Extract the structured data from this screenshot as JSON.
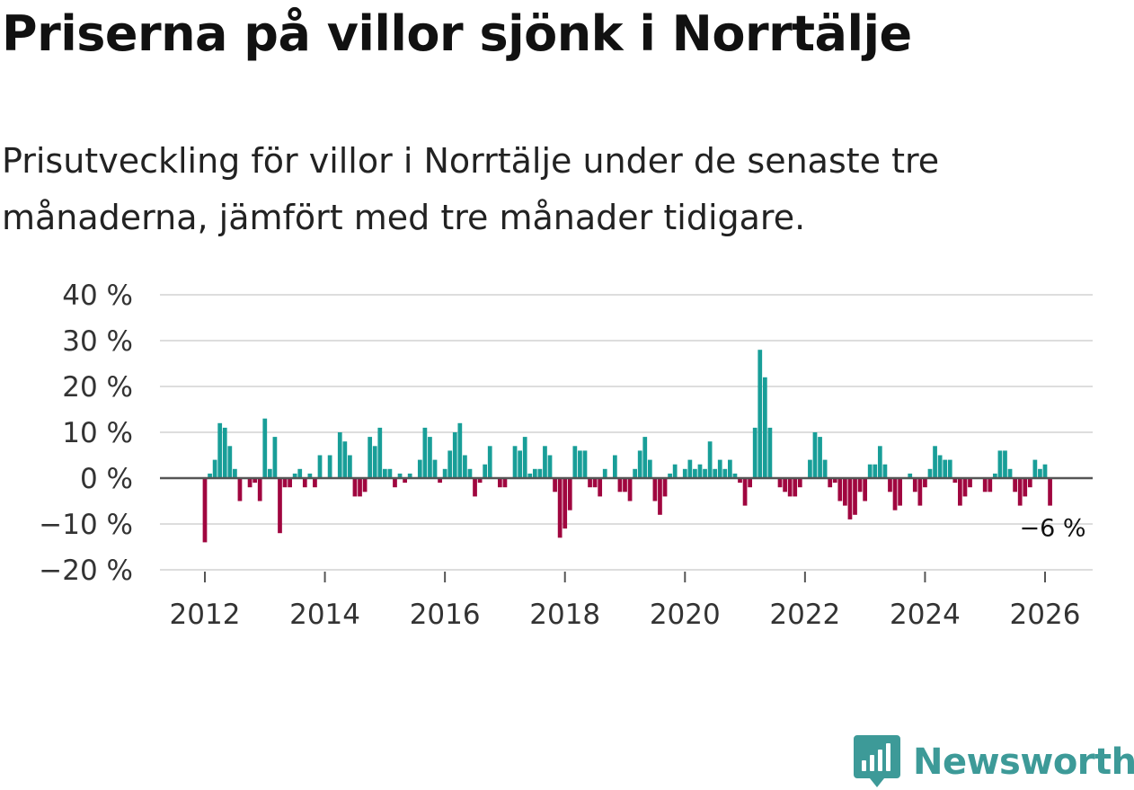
{
  "header": {
    "title": "Priserna på villor sjönk i Norrtälje",
    "subtitle": "Prisutveckling för villor i Norrtälje under de senaste tre månaderna, jämfört med tre månader tidigare."
  },
  "brand": {
    "name": "Newsworthy"
  },
  "colors": {
    "positive": "#189e98",
    "negative": "#a0063f",
    "grid": "#dddddd",
    "zero_line": "#555555",
    "text": "#333333"
  },
  "chart_data": {
    "type": "bar",
    "title": "Priserna på villor sjönk i Norrtälje",
    "xlabel": "",
    "ylabel": "",
    "ylim": [
      -20,
      40
    ],
    "y_ticks": [
      40,
      30,
      20,
      10,
      0,
      -10,
      -20
    ],
    "y_tick_labels": [
      "40 %",
      "30 %",
      "20 %",
      "10 %",
      "0 %",
      "−10 %",
      "−20 %"
    ],
    "x_ticks": [
      2012,
      2014,
      2016,
      2018,
      2020,
      2022,
      2024,
      2026
    ],
    "x_tick_labels": [
      "2012",
      "2014",
      "2016",
      "2018",
      "2020",
      "2022",
      "2024",
      "2026"
    ],
    "x_start": 2012.0,
    "step_months": 1,
    "grid": true,
    "last_value_label": "−6 %",
    "values": [
      -14,
      1,
      4,
      12,
      11,
      7,
      2,
      -5,
      0,
      -2,
      -1,
      -5,
      13,
      2,
      9,
      -12,
      -2,
      -2,
      1,
      2,
      -2,
      1,
      -2,
      5,
      0,
      5,
      0,
      10,
      8,
      5,
      -4,
      -4,
      -3,
      9,
      7,
      11,
      2,
      2,
      -2,
      1,
      -1,
      1,
      0,
      4,
      11,
      9,
      4,
      -1,
      2,
      6,
      10,
      12,
      5,
      2,
      -4,
      -1,
      3,
      7,
      0,
      -2,
      -2,
      0,
      7,
      6,
      9,
      1,
      2,
      2,
      7,
      5,
      -3,
      -13,
      -11,
      -7,
      7,
      6,
      6,
      -2,
      -2,
      -4,
      2,
      0,
      5,
      -3,
      -3,
      -5,
      2,
      6,
      9,
      4,
      -5,
      -8,
      -4,
      1,
      3,
      0,
      2,
      4,
      2,
      3,
      2,
      8,
      2,
      4,
      2,
      4,
      1,
      -1,
      -6,
      -2,
      11,
      28,
      22,
      11,
      0,
      -2,
      -3,
      -4,
      -4,
      -2,
      0,
      4,
      10,
      9,
      4,
      -2,
      -1,
      -5,
      -6,
      -9,
      -8,
      -3,
      -5,
      3,
      3,
      7,
      3,
      -3,
      -7,
      -6,
      0,
      1,
      -3,
      -6,
      -2,
      2,
      7,
      5,
      4,
      4,
      -1,
      -6,
      -4,
      -2,
      0,
      0,
      -3,
      -3,
      1,
      6,
      6,
      2,
      -3,
      -6,
      -4,
      -2,
      4,
      2,
      3,
      -6
    ]
  }
}
